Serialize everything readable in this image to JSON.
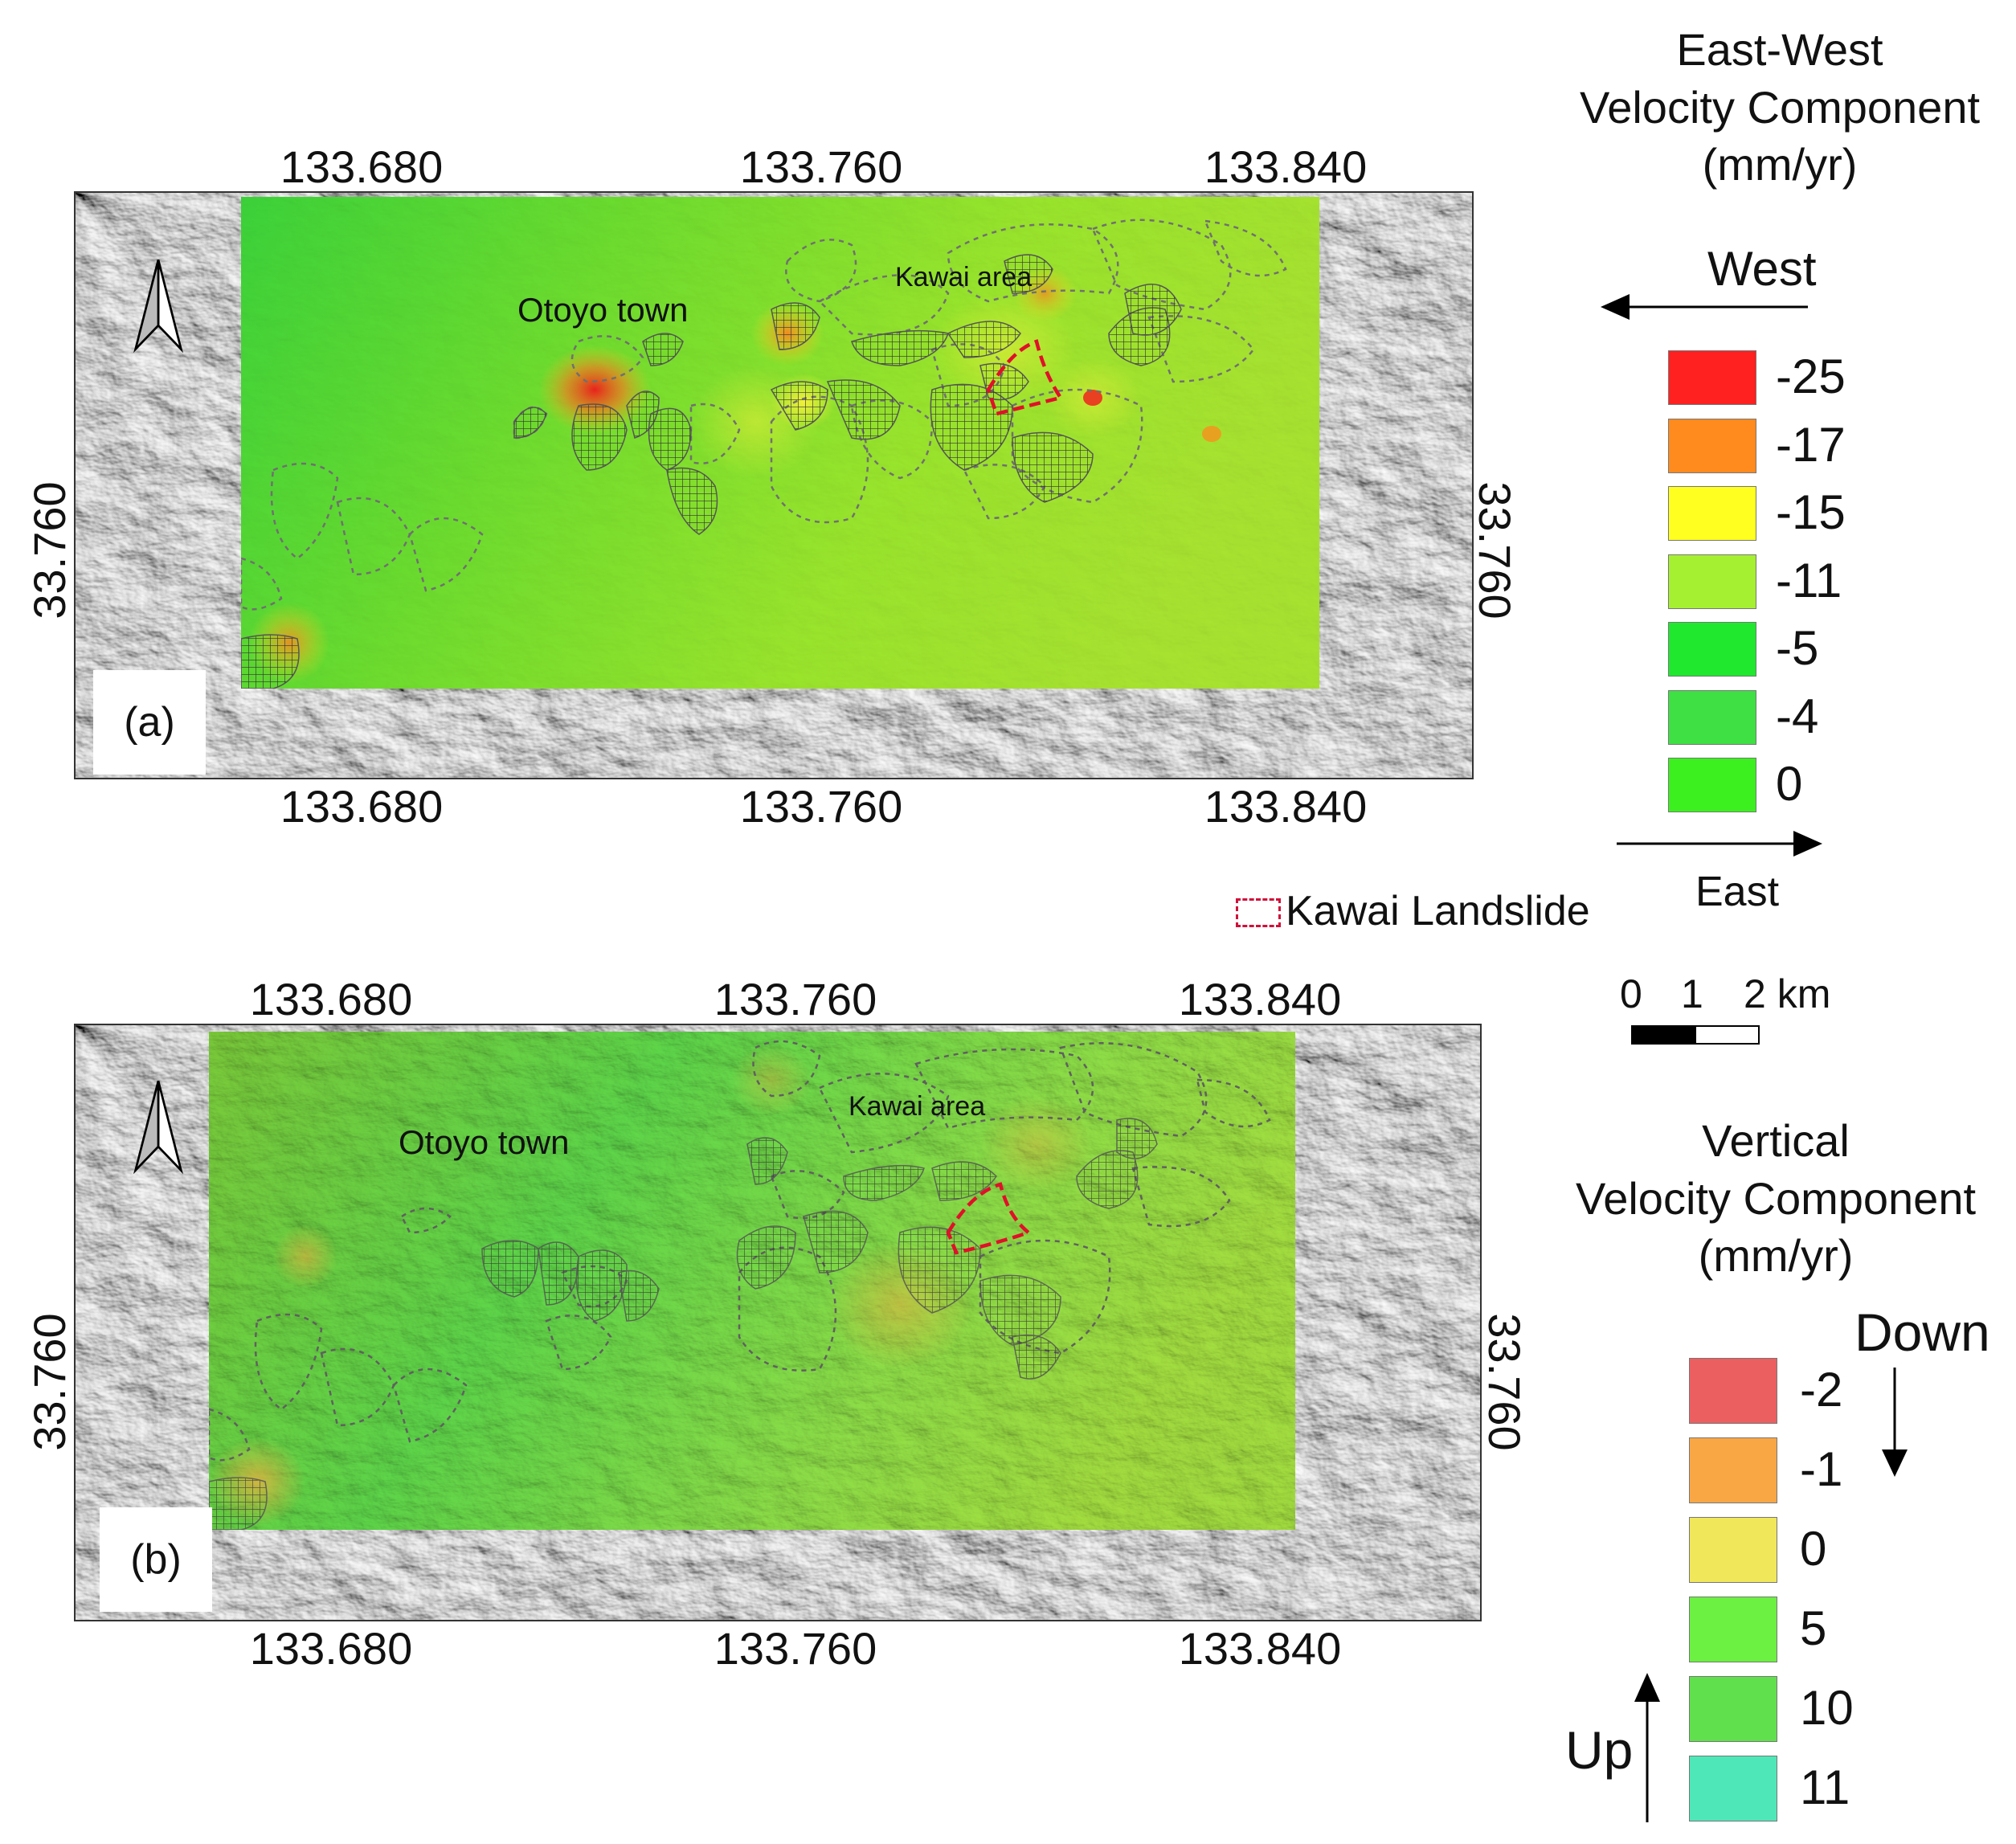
{
  "panel_a": {
    "tag": "(a)",
    "ticks_top": [
      "133.680",
      "133.760",
      "133.840"
    ],
    "ticks_bottom": [
      "133.680",
      "133.760",
      "133.840"
    ],
    "tick_left": "33.760",
    "tick_right": "33.760",
    "town_label": "Otoyo town",
    "area_label": "Kawai area"
  },
  "panel_b": {
    "tag": "(b)",
    "ticks_top": [
      "133.680",
      "133.760",
      "133.840"
    ],
    "ticks_bottom": [
      "133.680",
      "133.760",
      "133.840"
    ],
    "tick_left": "33.760",
    "tick_right": "33.760",
    "town_label": "Otoyo town",
    "area_label": "Kawai area"
  },
  "legend_ew": {
    "title_lines": [
      "East-West",
      "Velocity Component",
      "(mm/yr)"
    ],
    "west_label": "West",
    "east_label": "East",
    "items": [
      {
        "label": "-25",
        "color": "#ff2020"
      },
      {
        "label": "-17",
        "color": "#ff8a1e"
      },
      {
        "label": "-15",
        "color": "#ffff20"
      },
      {
        "label": "-11",
        "color": "#a6f032"
      },
      {
        "label": "-5",
        "color": "#1fe82e"
      },
      {
        "label": "-4",
        "color": "#3ee043"
      },
      {
        "label": "0",
        "color": "#3cf020"
      }
    ]
  },
  "legend_kawai": {
    "label": "Kawai Landslide",
    "color": "#d0103a"
  },
  "scale_bar": {
    "labels": [
      "0",
      "1",
      "2 km"
    ]
  },
  "legend_vertical": {
    "title_lines": [
      "Vertical",
      "Velocity Component",
      "(mm/yr)"
    ],
    "down_label": "Down",
    "up_label": "Up",
    "items": [
      {
        "label": "-2",
        "color": "#ec5f60"
      },
      {
        "label": "-1",
        "color": "#f9a744"
      },
      {
        "label": "0",
        "color": "#f0e75a"
      },
      {
        "label": "5",
        "color": "#6cf041"
      },
      {
        "label": "10",
        "color": "#60e04c"
      },
      {
        "label": "11",
        "color": "#4ee8b8"
      }
    ]
  }
}
